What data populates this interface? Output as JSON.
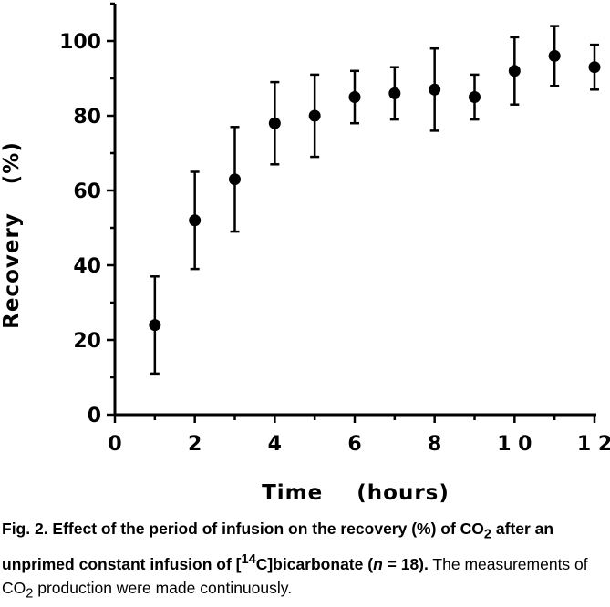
{
  "chart_data": {
    "type": "scatter",
    "xlabel": "Time",
    "xlabel_unit": "(hours)",
    "ylabel": "Recovery",
    "ylabel_unit": "(%)",
    "xlim": [
      0,
      12
    ],
    "ylim": [
      0,
      110
    ],
    "x_ticks": [
      "0",
      "2",
      "4",
      "6",
      "8",
      "1 0",
      "1 2"
    ],
    "y_ticks": [
      "0",
      "20",
      "40",
      "60",
      "80",
      "100"
    ],
    "grid": false,
    "points": [
      {
        "x": 1,
        "y": 24,
        "err_low": 11,
        "err_high": 37
      },
      {
        "x": 2,
        "y": 52,
        "err_low": 39,
        "err_high": 65
      },
      {
        "x": 3,
        "y": 63,
        "err_low": 49,
        "err_high": 77
      },
      {
        "x": 4,
        "y": 78,
        "err_low": 67,
        "err_high": 89
      },
      {
        "x": 5,
        "y": 80,
        "err_low": 69,
        "err_high": 91
      },
      {
        "x": 6,
        "y": 85,
        "err_low": 78,
        "err_high": 92
      },
      {
        "x": 7,
        "y": 86,
        "err_low": 79,
        "err_high": 93
      },
      {
        "x": 8,
        "y": 87,
        "err_low": 76,
        "err_high": 98
      },
      {
        "x": 9,
        "y": 85,
        "err_low": 79,
        "err_high": 91
      },
      {
        "x": 10,
        "y": 92,
        "err_low": 83,
        "err_high": 101
      },
      {
        "x": 11,
        "y": 96,
        "err_low": 88,
        "err_high": 104
      },
      {
        "x": 12,
        "y": 93,
        "err_low": 87,
        "err_high": 99
      }
    ]
  },
  "caption": {
    "part1": "Fig. 2. Effect of the period of infusion on the recovery (%) of CO",
    "sub1": "2",
    "part2": " after an unprimed constant infusion of [",
    "sup1": "14",
    "part3": "C]bicarbonate (",
    "italic_n": "n",
    "part4": " = 18).",
    "part5": " The measurements of CO",
    "sub2": "2",
    "part6": " production were made continuously."
  }
}
